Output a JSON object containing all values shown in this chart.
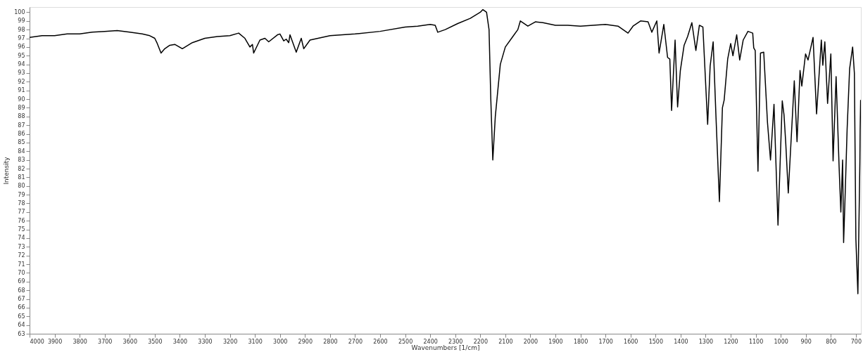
{
  "chart_data": {
    "type": "line",
    "xlabel": "Wavenumbers [1/cm]",
    "ylabel": "Intensity",
    "xlim": [
      4000,
      680
    ],
    "ylim": [
      63,
      100.6
    ],
    "xticks": [
      4000,
      3900,
      3800,
      3700,
      3600,
      3500,
      3400,
      3300,
      3200,
      3100,
      3000,
      2900,
      2800,
      2700,
      2600,
      2500,
      2400,
      2300,
      2200,
      2100,
      2000,
      1900,
      1800,
      1700,
      1600,
      1500,
      1400,
      1300,
      1200,
      1100,
      1000,
      900,
      800,
      700
    ],
    "yticks": [
      63,
      64,
      65,
      66,
      67,
      68,
      69,
      70,
      71,
      72,
      73,
      74,
      75,
      76,
      77,
      78,
      79,
      80,
      81,
      82,
      83,
      84,
      85,
      86,
      87,
      88,
      89,
      90,
      91,
      92,
      93,
      94,
      95,
      96,
      97,
      98,
      99,
      100
    ],
    "grid": false,
    "marker": "none",
    "line_style": "solid",
    "series": [
      {
        "color": "#000000",
        "x": [
          4000,
          3950,
          3900,
          3850,
          3800,
          3750,
          3700,
          3650,
          3600,
          3550,
          3520,
          3500,
          3490,
          3475,
          3460,
          3440,
          3420,
          3390,
          3350,
          3300,
          3250,
          3200,
          3165,
          3140,
          3120,
          3110,
          3105,
          3080,
          3060,
          3045,
          3010,
          3000,
          2985,
          2975,
          2965,
          2960,
          2935,
          2915,
          2905,
          2880,
          2800,
          2700,
          2600,
          2500,
          2450,
          2400,
          2380,
          2370,
          2340,
          2290,
          2240,
          2200,
          2190,
          2175,
          2165,
          2158,
          2150,
          2140,
          2120,
          2100,
          2070,
          2050,
          2040,
          2010,
          1980,
          1950,
          1900,
          1850,
          1800,
          1700,
          1650,
          1610,
          1590,
          1560,
          1530,
          1515,
          1495,
          1486,
          1467,
          1452,
          1443,
          1436,
          1422,
          1412,
          1401,
          1386,
          1372,
          1355,
          1339,
          1325,
          1311,
          1292,
          1282,
          1270,
          1259,
          1245,
          1233,
          1226,
          1212,
          1200,
          1191,
          1176,
          1164,
          1150,
          1131,
          1112,
          1108,
          1102,
          1091,
          1081,
          1068,
          1053,
          1041,
          1027,
          1011,
          994,
          987,
          980,
          970,
          946,
          935,
          923,
          916,
          901,
          891,
          871,
          857,
          838,
          832,
          824,
          813,
          800,
          791,
          779,
          767,
          760,
          753,
          749,
          744,
          735,
          725,
          713,
          706,
          700,
          692,
          684,
          683,
          681
        ],
        "values": [
          97.1,
          97.3,
          97.3,
          97.5,
          97.5,
          97.7,
          97.8,
          97.9,
          97.7,
          97.5,
          97.3,
          97.0,
          96.4,
          95.3,
          95.8,
          96.2,
          96.3,
          95.8,
          96.5,
          97.0,
          97.2,
          97.3,
          97.6,
          97.0,
          96.0,
          96.3,
          95.3,
          96.8,
          97.0,
          96.6,
          97.4,
          97.5,
          96.7,
          96.9,
          96.5,
          97.4,
          95.4,
          97.0,
          95.8,
          96.8,
          97.3,
          97.5,
          97.8,
          98.3,
          98.4,
          98.6,
          98.5,
          97.7,
          98.0,
          98.7,
          99.3,
          100.0,
          100.3,
          100.0,
          98.0,
          90.0,
          83.0,
          88.0,
          94.0,
          96.0,
          97.2,
          98.0,
          99.0,
          98.4,
          98.9,
          98.8,
          98.5,
          98.5,
          98.4,
          98.6,
          98.4,
          97.6,
          98.4,
          99.0,
          98.9,
          97.7,
          99.0,
          95.3,
          98.6,
          94.8,
          94.6,
          88.7,
          96.8,
          89.1,
          93.3,
          96.2,
          97.2,
          98.8,
          95.6,
          98.5,
          98.3,
          87.1,
          93.8,
          96.6,
          88.2,
          78.2,
          89.0,
          89.9,
          94.6,
          96.4,
          95.0,
          97.4,
          94.5,
          96.8,
          97.8,
          97.6,
          95.9,
          95.6,
          81.7,
          95.3,
          95.4,
          87.3,
          83.0,
          89.4,
          75.5,
          89.8,
          88.2,
          84.9,
          79.2,
          92.1,
          85.1,
          93.3,
          91.5,
          95.2,
          94.5,
          97.1,
          88.3,
          96.8,
          93.9,
          96.6,
          89.5,
          95.2,
          82.9,
          92.6,
          82.2,
          77.0,
          83.0,
          73.5,
          77.9,
          86.5,
          93.5,
          96.0,
          93.0,
          73.9,
          67.6,
          82.8,
          86.3,
          89.9
        ]
      }
    ]
  }
}
